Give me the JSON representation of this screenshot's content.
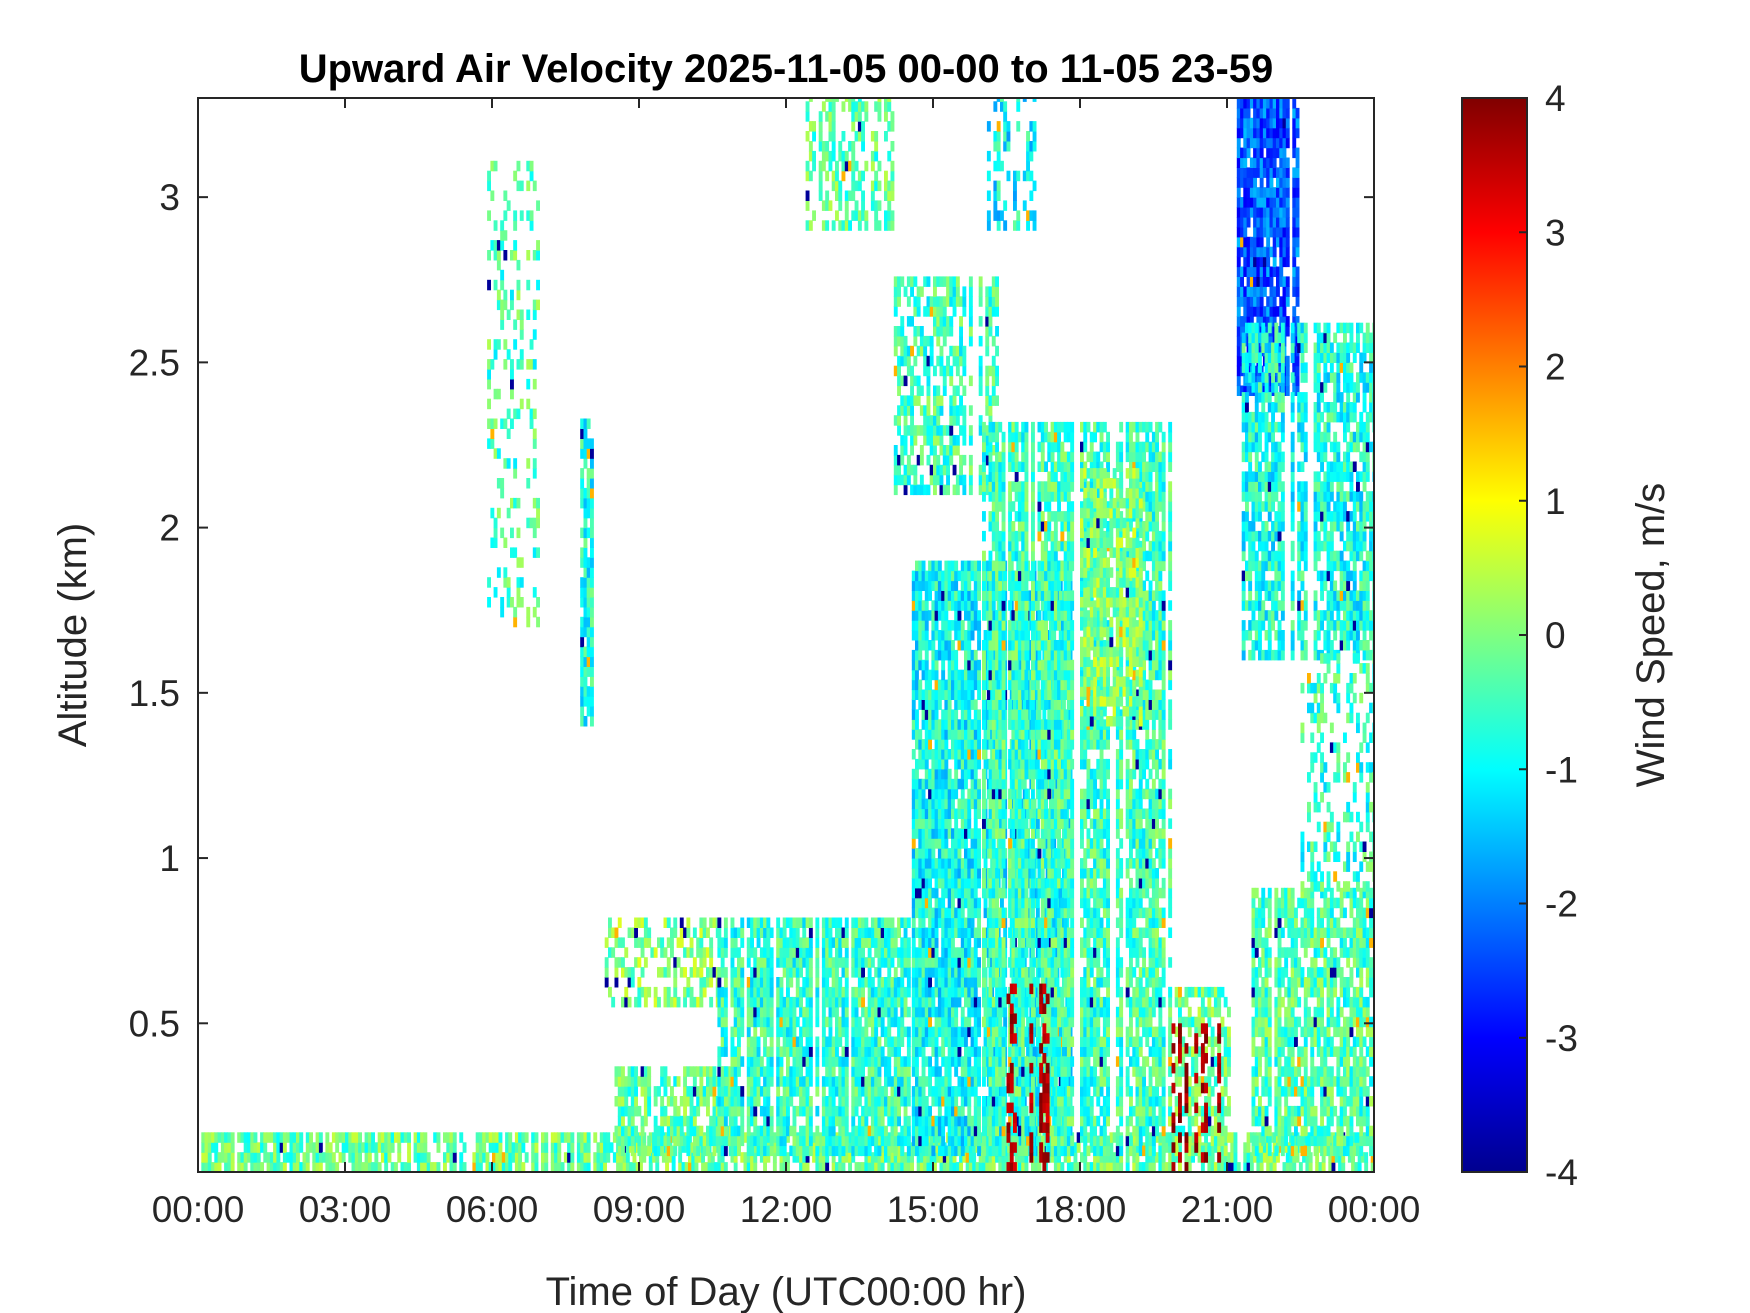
{
  "chart_data": {
    "type": "heatmap",
    "title": "Upward Air Velocity 2025-11-05 00-00 to 11-05 23-59",
    "xlabel": "Time of Day (UTC00:00 hr)",
    "ylabel": "Altitude (km)",
    "xlim_hours": [
      0,
      24
    ],
    "ylim_km": [
      0.05,
      3.3
    ],
    "x_tick_values_hours": [
      0,
      3,
      6,
      9,
      12,
      15,
      18,
      21,
      24
    ],
    "x_tick_labels": [
      "00:00",
      "03:00",
      "06:00",
      "09:00",
      "12:00",
      "15:00",
      "18:00",
      "21:00",
      "00:00"
    ],
    "y_tick_values": [
      0.5,
      1,
      1.5,
      2,
      2.5,
      3
    ],
    "y_tick_labels": [
      "0.5",
      "1",
      "1.5",
      "2",
      "2.5",
      "3"
    ],
    "colorbar": {
      "label": "Wind Speed, m/s",
      "range": [
        -4,
        4
      ],
      "tick_values": [
        -4,
        -3,
        -2,
        -1,
        0,
        1,
        2,
        3,
        4
      ],
      "tick_labels": [
        "-4",
        "-3",
        "-2",
        "-1",
        "0",
        "1",
        "2",
        "3",
        "4"
      ],
      "colormap": "jet"
    },
    "grid": false,
    "data_regions": [
      {
        "t_hours": [
          0.0,
          24.0
        ],
        "alt_km": [
          0.05,
          0.15
        ],
        "velocity_ms": -0.2,
        "coverage": 0.85
      },
      {
        "t_hours": [
          5.9,
          6.9
        ],
        "alt_km": [
          1.7,
          3.1
        ],
        "velocity_ms": -0.4,
        "coverage": 0.25
      },
      {
        "t_hours": [
          7.8,
          8.0
        ],
        "alt_km": [
          1.4,
          2.3
        ],
        "velocity_ms": -0.8,
        "coverage": 0.8
      },
      {
        "t_hours": [
          8.3,
          10.6
        ],
        "alt_km": [
          0.55,
          0.8
        ],
        "velocity_ms": 0.0,
        "coverage": 0.55
      },
      {
        "t_hours": [
          8.5,
          11.0
        ],
        "alt_km": [
          0.1,
          0.35
        ],
        "velocity_ms": -0.3,
        "coverage": 0.7
      },
      {
        "t_hours": [
          10.6,
          14.5
        ],
        "alt_km": [
          0.1,
          0.8
        ],
        "velocity_ms": -0.6,
        "coverage": 0.85
      },
      {
        "t_hours": [
          12.4,
          14.2
        ],
        "alt_km": [
          2.9,
          3.3
        ],
        "velocity_ms": -0.3,
        "coverage": 0.5
      },
      {
        "t_hours": [
          14.2,
          16.3
        ],
        "alt_km": [
          2.1,
          2.75
        ],
        "velocity_ms": -0.5,
        "coverage": 0.65
      },
      {
        "t_hours": [
          14.5,
          17.8
        ],
        "alt_km": [
          0.1,
          1.9
        ],
        "velocity_ms": -0.9,
        "coverage": 0.88
      },
      {
        "t_hours": [
          16.0,
          19.8
        ],
        "alt_km": [
          0.1,
          2.3
        ],
        "velocity_ms": -0.5,
        "coverage": 0.8
      },
      {
        "t_hours": [
          18.0,
          19.3
        ],
        "alt_km": [
          1.4,
          2.15
        ],
        "velocity_ms": 0.0,
        "coverage": 0.7
      },
      {
        "t_hours": [
          16.1,
          17.1
        ],
        "alt_km": [
          2.9,
          3.3
        ],
        "velocity_ms": -1.0,
        "coverage": 0.45
      },
      {
        "t_hours": [
          19.8,
          21.0
        ],
        "alt_km": [
          0.1,
          0.6
        ],
        "velocity_ms": -0.2,
        "coverage": 0.6
      },
      {
        "t_hours": [
          21.2,
          22.4
        ],
        "alt_km": [
          2.4,
          3.3
        ],
        "velocity_ms": -2.3,
        "coverage": 0.9
      },
      {
        "t_hours": [
          21.3,
          24.0
        ],
        "alt_km": [
          1.6,
          2.6
        ],
        "velocity_ms": -0.8,
        "coverage": 0.75
      },
      {
        "t_hours": [
          21.5,
          24.0
        ],
        "alt_km": [
          0.1,
          0.9
        ],
        "velocity_ms": -0.4,
        "coverage": 0.75
      },
      {
        "t_hours": [
          22.5,
          24.0
        ],
        "alt_km": [
          0.9,
          1.6
        ],
        "velocity_ms": -0.6,
        "coverage": 0.4
      }
    ],
    "strong_updraft_regions": [
      {
        "t_hours": [
          16.5,
          17.3
        ],
        "alt_km": [
          0.05,
          0.6
        ],
        "velocity_ms": 3.6
      },
      {
        "t_hours": [
          19.8,
          21.0
        ],
        "alt_km": [
          0.05,
          0.5
        ],
        "velocity_ms": 3.8
      }
    ]
  }
}
